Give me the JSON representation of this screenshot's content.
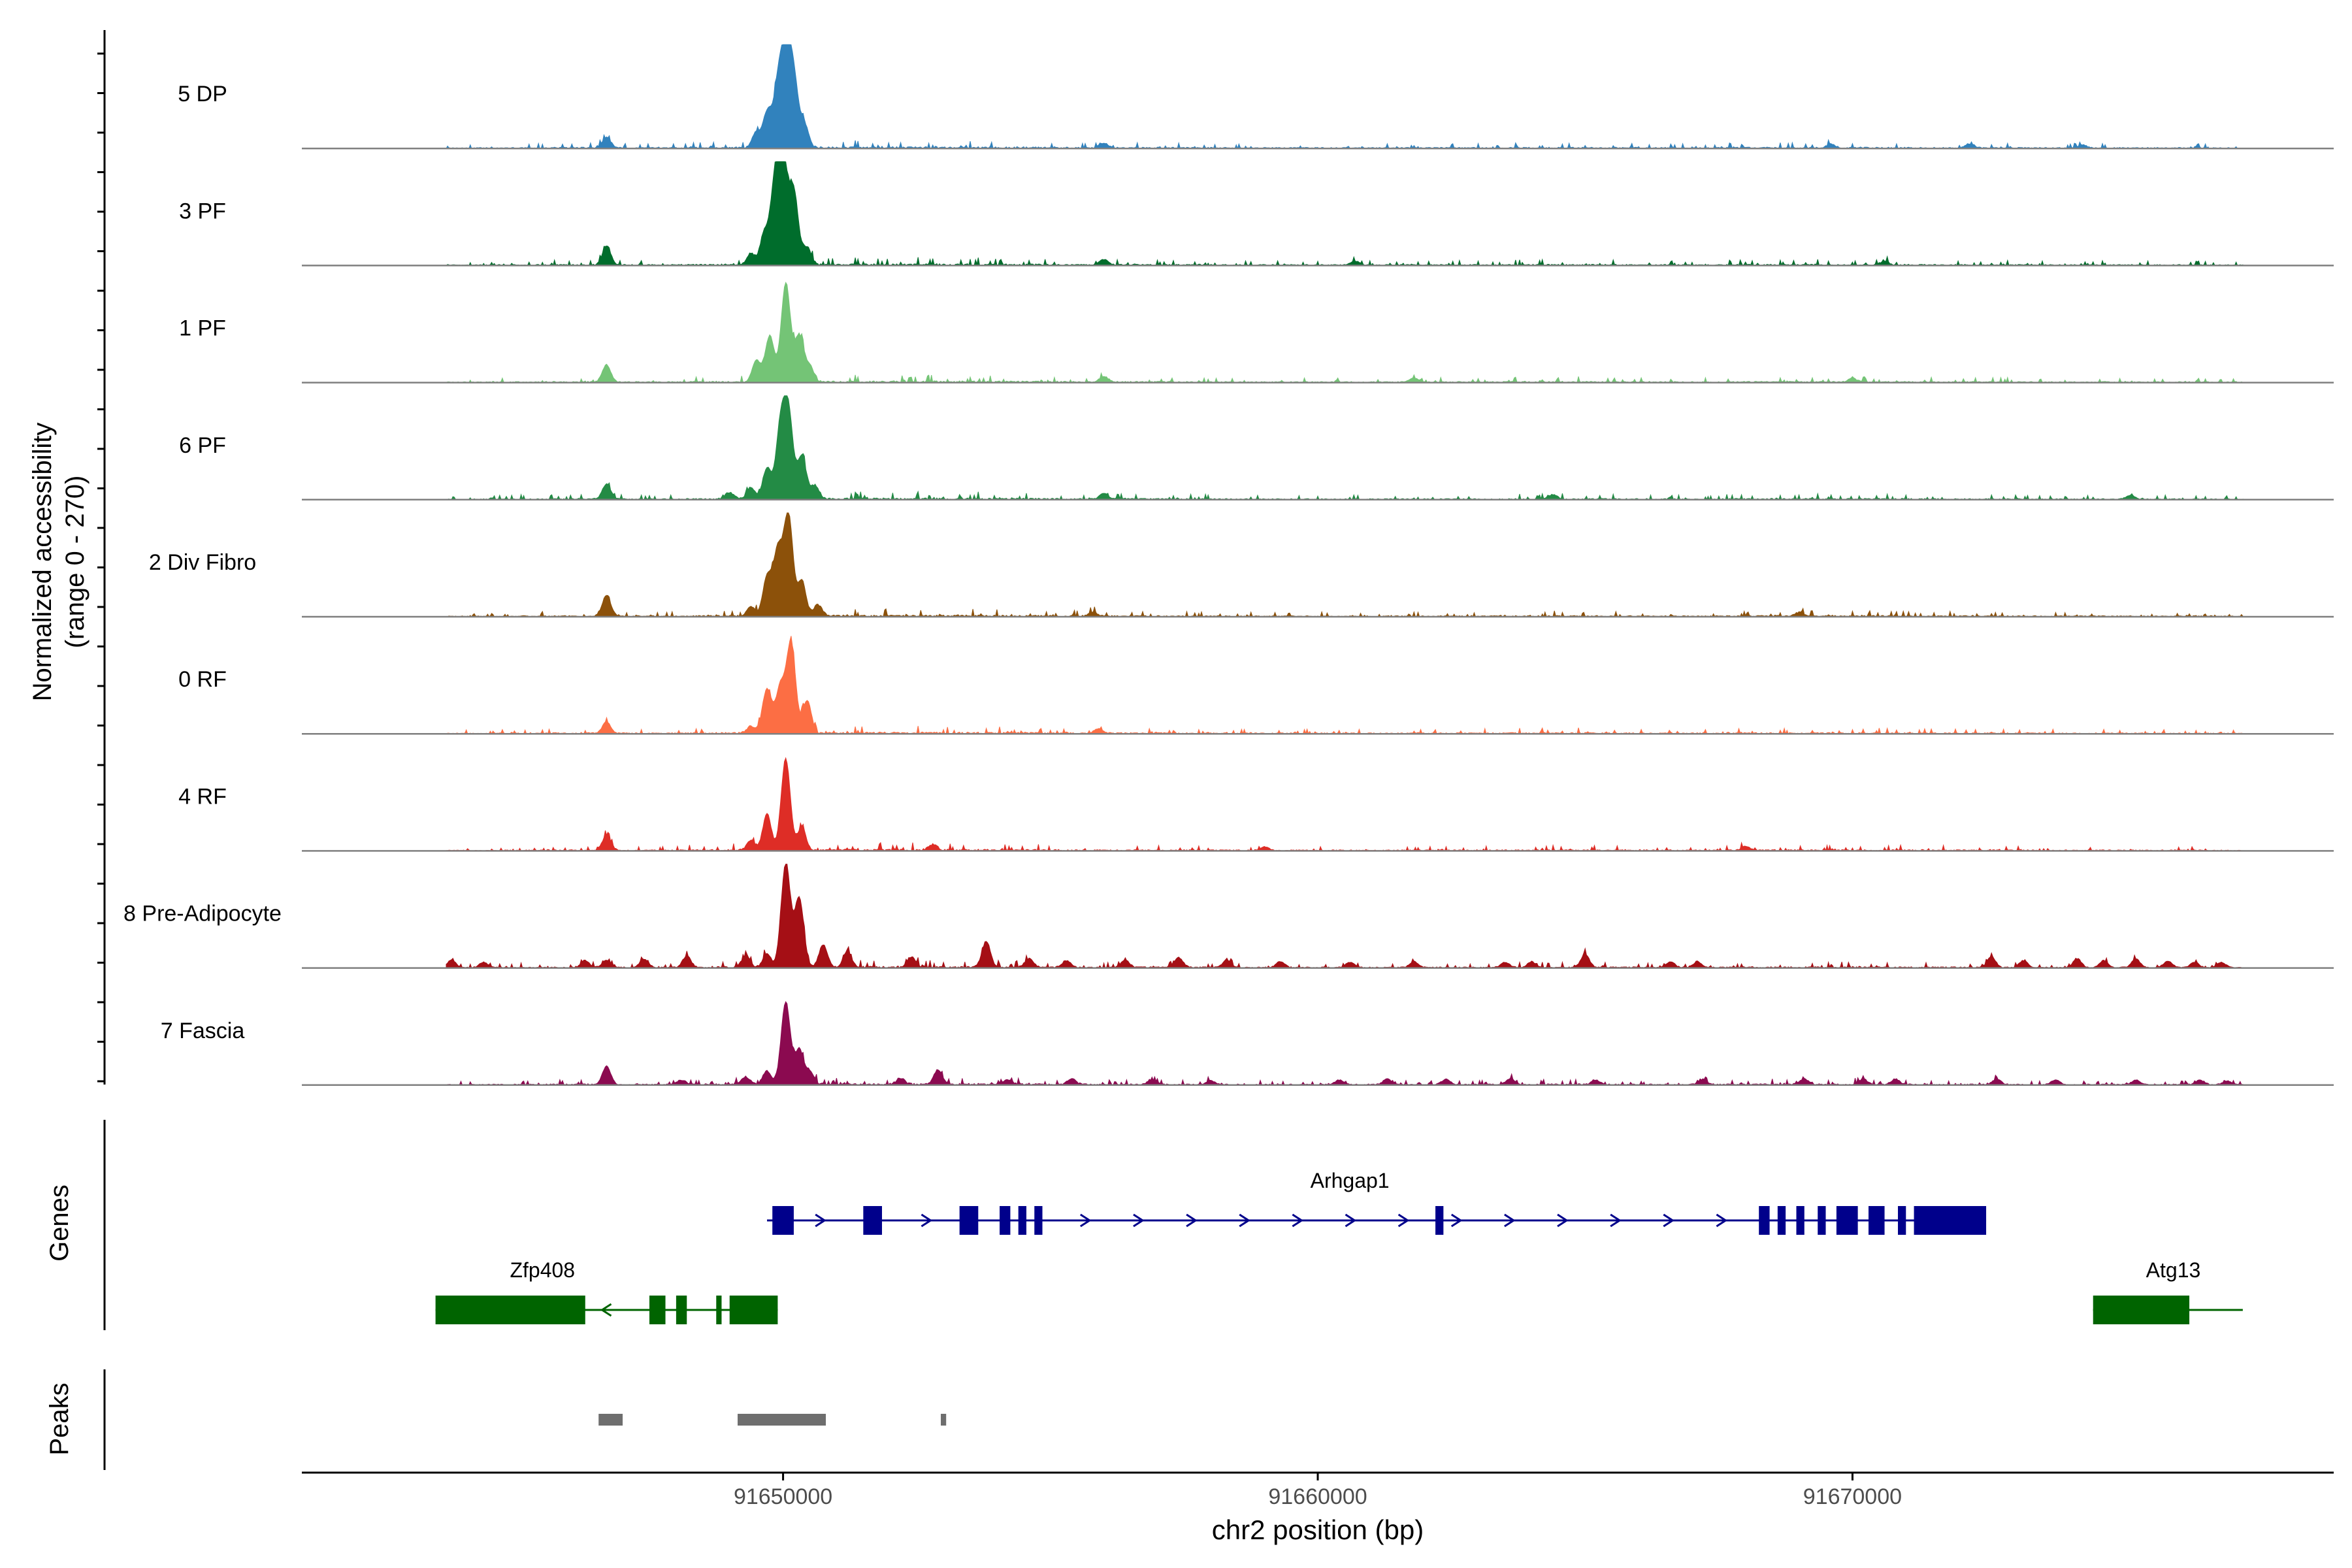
{
  "chart_data": {
    "type": "area",
    "title": "",
    "ylabel_line1": "Normalized accessibility",
    "ylabel_line2": "(range 0 - 270)",
    "ylim": [
      0,
      270
    ],
    "xlabel": "chr2 position (bp)",
    "xlim": [
      91641000,
      91679000
    ],
    "xticks": [
      91650000,
      91660000,
      91670000
    ],
    "xtick_labels": [
      "91650000",
      "91660000",
      "91670000"
    ],
    "section_labels": {
      "genes": "Genes",
      "peaks": "Peaks"
    },
    "tracks": [
      {
        "name": "5 DP",
        "color": "#3182bd",
        "key": "dp5"
      },
      {
        "name": "3 PF",
        "color": "#006d2c",
        "key": "pf3"
      },
      {
        "name": "1 PF",
        "color": "#74c476",
        "key": "pf1"
      },
      {
        "name": "6 PF",
        "color": "#238b45",
        "key": "pf6"
      },
      {
        "name": "2 Div Fibro",
        "color": "#8c510a",
        "key": "div2"
      },
      {
        "name": "0 RF",
        "color": "#fc6e44",
        "key": "rf0"
      },
      {
        "name": "4 RF",
        "color": "#de2d26",
        "key": "rf4"
      },
      {
        "name": "8 Pre-Adipocyte",
        "color": "#a50f15",
        "key": "pre8"
      },
      {
        "name": "7 Fascia",
        "color": "#8b0a50",
        "key": "fas7"
      }
    ],
    "signal": {
      "baseline": [
        [
          91643700,
          6
        ],
        [
          91644900,
          8
        ],
        [
          91646300,
          10
        ],
        [
          91647700,
          8
        ],
        [
          91649000,
          12
        ],
        [
          91652800,
          14
        ],
        [
          91656000,
          10
        ],
        [
          91659300,
          8
        ],
        [
          91661700,
          8
        ],
        [
          91664800,
          10
        ],
        [
          91666800,
          8
        ],
        [
          91668300,
          10
        ],
        [
          91670200,
          10
        ],
        [
          91673600,
          8
        ],
        [
          91676600,
          8
        ],
        [
          91677300,
          6
        ]
      ],
      "dp5": {
        "peaks": [
          [
            91646700,
            28
          ],
          [
            91649500,
            40
          ],
          [
            91649700,
            90
          ],
          [
            91649900,
            150
          ],
          [
            91650050,
            238
          ],
          [
            91650200,
            175
          ],
          [
            91650400,
            60
          ],
          [
            91656000,
            12
          ],
          [
            91669600,
            10
          ],
          [
            91672200,
            10
          ],
          [
            91674300,
            8
          ]
        ]
      },
      "pf3": {
        "peaks": [
          [
            91646700,
            50
          ],
          [
            91649400,
            30
          ],
          [
            91649650,
            80
          ],
          [
            91649850,
            210
          ],
          [
            91650000,
            255
          ],
          [
            91650200,
            190
          ],
          [
            91650450,
            45
          ],
          [
            91656000,
            14
          ],
          [
            91660700,
            10
          ],
          [
            91670600,
            10
          ]
        ]
      },
      "pf1": {
        "peaks": [
          [
            91646700,
            45
          ],
          [
            91649500,
            55
          ],
          [
            91649750,
            120
          ],
          [
            91650050,
            255
          ],
          [
            91650300,
            120
          ],
          [
            91650500,
            40
          ],
          [
            91656000,
            15
          ],
          [
            91661800,
            10
          ],
          [
            91670000,
            10
          ]
        ]
      },
      "pf6": {
        "peaks": [
          [
            91646700,
            40
          ],
          [
            91649000,
            18
          ],
          [
            91649400,
            30
          ],
          [
            91649700,
            80
          ],
          [
            91649950,
            180
          ],
          [
            91650100,
            218
          ],
          [
            91650350,
            110
          ],
          [
            91650600,
            35
          ],
          [
            91656000,
            15
          ],
          [
            91664400,
            12
          ],
          [
            91675200,
            10
          ]
        ]
      },
      "div2": {
        "peaks": [
          [
            91646700,
            55
          ],
          [
            91649400,
            25
          ],
          [
            91649700,
            100
          ],
          [
            91649900,
            170
          ],
          [
            91650100,
            262
          ],
          [
            91650350,
            90
          ],
          [
            91650650,
            30
          ],
          [
            91655800,
            10
          ],
          [
            91669000,
            10
          ]
        ]
      },
      "rf0": {
        "peaks": [
          [
            91646700,
            30
          ],
          [
            91649400,
            18
          ],
          [
            91649700,
            115
          ],
          [
            91649950,
            120
          ],
          [
            91650150,
            232
          ],
          [
            91650450,
            85
          ],
          [
            91655900,
            12
          ]
        ]
      },
      "rf4": {
        "peaks": [
          [
            91646700,
            40
          ],
          [
            91649400,
            25
          ],
          [
            91649700,
            95
          ],
          [
            91650050,
            238
          ],
          [
            91650350,
            60
          ],
          [
            91652800,
            15
          ],
          [
            91659000,
            10
          ],
          [
            91668000,
            10
          ]
        ]
      },
      "pre8": {
        "peaks": [
          [
            91643800,
            20
          ],
          [
            91644400,
            14
          ],
          [
            91646300,
            18
          ],
          [
            91646700,
            20
          ],
          [
            91647400,
            22
          ],
          [
            91648200,
            30
          ],
          [
            91649300,
            30
          ],
          [
            91649700,
            35
          ],
          [
            91650050,
            270
          ],
          [
            91650300,
            180
          ],
          [
            91650750,
            60
          ],
          [
            91651200,
            40
          ],
          [
            91652400,
            28
          ],
          [
            91653800,
            68
          ],
          [
            91654600,
            22
          ],
          [
            91655300,
            18
          ],
          [
            91656400,
            18
          ],
          [
            91657400,
            26
          ],
          [
            91658300,
            20
          ],
          [
            91659300,
            16
          ],
          [
            91660600,
            14
          ],
          [
            91661800,
            16
          ],
          [
            91663500,
            14
          ],
          [
            91664000,
            14
          ],
          [
            91665000,
            35
          ],
          [
            91666600,
            14
          ],
          [
            91667100,
            14
          ],
          [
            91672600,
            28
          ],
          [
            91673200,
            18
          ],
          [
            91674200,
            22
          ],
          [
            91674700,
            18
          ],
          [
            91675300,
            22
          ],
          [
            91675900,
            16
          ],
          [
            91676400,
            14
          ],
          [
            91676900,
            14
          ]
        ]
      },
      "fas7": {
        "peaks": [
          [
            91646700,
            48
          ],
          [
            91648100,
            12
          ],
          [
            91649300,
            20
          ],
          [
            91649700,
            35
          ],
          [
            91650050,
            215
          ],
          [
            91650300,
            90
          ],
          [
            91650500,
            35
          ],
          [
            91652200,
            15
          ],
          [
            91652900,
            38
          ],
          [
            91654200,
            12
          ],
          [
            91655400,
            15
          ],
          [
            91656900,
            12
          ],
          [
            91658000,
            10
          ],
          [
            91660400,
            12
          ],
          [
            91661300,
            15
          ],
          [
            91662400,
            14
          ],
          [
            91663600,
            15
          ],
          [
            91665200,
            12
          ],
          [
            91667200,
            14
          ],
          [
            91669100,
            14
          ],
          [
            91670200,
            14
          ],
          [
            91670800,
            14
          ],
          [
            91672700,
            14
          ],
          [
            91673800,
            12
          ],
          [
            91675300,
            12
          ],
          [
            91676500,
            12
          ],
          [
            91677000,
            10
          ]
        ]
      }
    },
    "genes": [
      {
        "name": "Arhgap1",
        "strand": "+",
        "color": "#00008b",
        "row": 1,
        "label_pos": 91660600,
        "start": 91649700,
        "end": 91672500,
        "exons": [
          [
            91649800,
            91650200
          ],
          [
            91651500,
            91651850
          ],
          [
            91653300,
            91653650
          ],
          [
            91654050,
            91654250
          ],
          [
            91654400,
            91654550
          ],
          [
            91654700,
            91654850
          ],
          [
            91662200,
            91662350
          ],
          [
            91668250,
            91668450
          ],
          [
            91668600,
            91668750
          ],
          [
            91668950,
            91669100
          ],
          [
            91669350,
            91669500
          ],
          [
            91669700,
            91670100
          ],
          [
            91670300,
            91670600
          ],
          [
            91670850,
            91671000
          ],
          [
            91671150,
            91672500
          ]
        ]
      },
      {
        "name": "Zfp408",
        "strand": "-",
        "color": "#006400",
        "row": 2,
        "label_pos": 91645500,
        "start": 91643500,
        "end": 91649900,
        "exons": [
          [
            91643500,
            91646300
          ],
          [
            91647500,
            91647800
          ],
          [
            91648000,
            91648200
          ],
          [
            91648750,
            91648850
          ],
          [
            91649000,
            91649900
          ]
        ]
      },
      {
        "name": "Atg13",
        "strand": "-",
        "color": "#006400",
        "row": 2,
        "label_pos": 91676000,
        "start": 91674500,
        "end": 91677300,
        "exons": [
          [
            91674500,
            91676300
          ]
        ]
      }
    ],
    "peaks": [
      [
        91646550,
        91647000
      ],
      [
        91649150,
        91650800
      ],
      [
        91652950,
        91653050
      ]
    ]
  }
}
